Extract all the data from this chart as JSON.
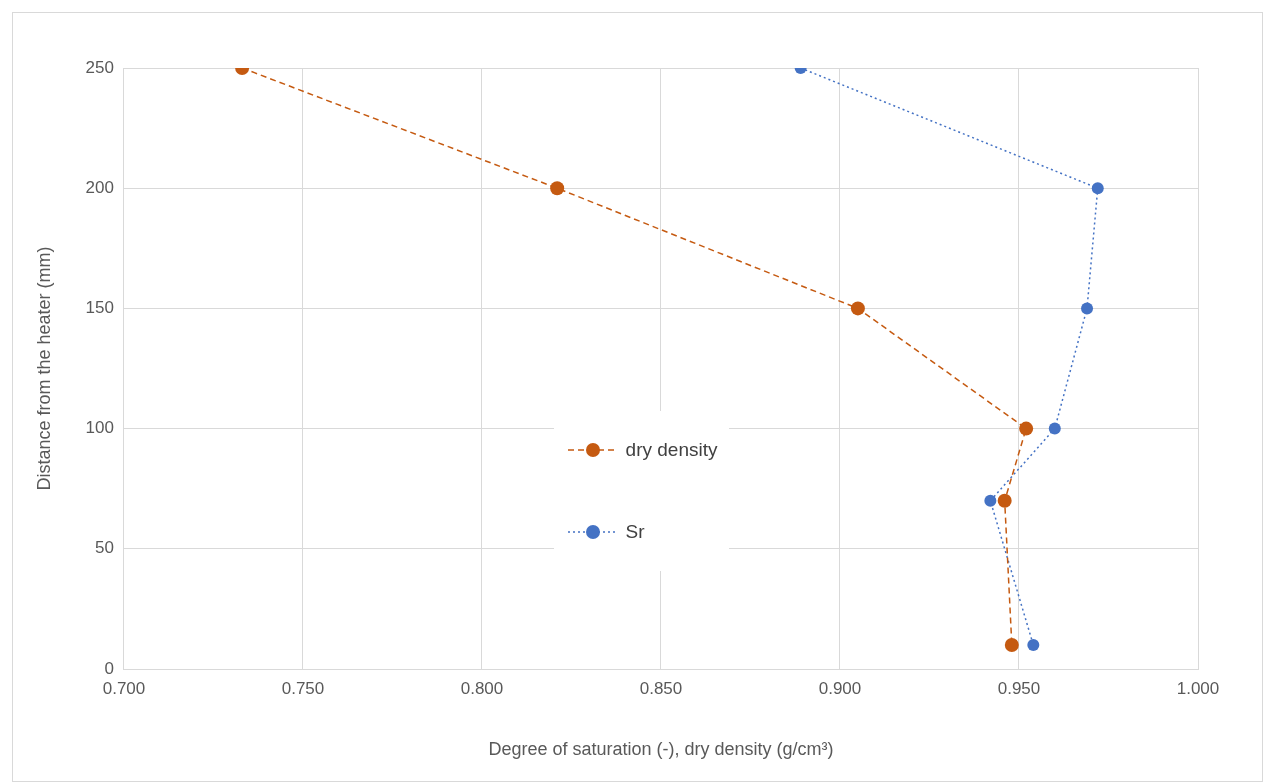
{
  "chart_data": {
    "type": "line",
    "xlabel": "Degree of saturation (-), dry density (g/cm³)",
    "ylabel": "Distance from the heater (mm)",
    "xlim": [
      0.7,
      1.0
    ],
    "xticks": [
      {
        "value": 0.7,
        "label": "0.700"
      },
      {
        "value": 0.75,
        "label": "0.750"
      },
      {
        "value": 0.8,
        "label": "0.800"
      },
      {
        "value": 0.85,
        "label": "0.850"
      },
      {
        "value": 0.9,
        "label": "0.900"
      },
      {
        "value": 0.95,
        "label": "0.950"
      },
      {
        "value": 1.0,
        "label": "1.000"
      }
    ],
    "ylim": [
      0,
      250
    ],
    "yticks": [
      0,
      50,
      100,
      150,
      200,
      250
    ],
    "grid": true,
    "legend": "center",
    "marker": "circle",
    "series": [
      {
        "name": "dry density",
        "color": "#c55a11",
        "line_style": "dashed",
        "x": [
          0.733,
          0.821,
          0.905,
          0.952,
          0.946,
          0.948
        ],
        "values": [
          250,
          200,
          150,
          100,
          70,
          10
        ]
      },
      {
        "name": "Sr",
        "color": "#4472c4",
        "line_style": "dotted",
        "x": [
          0.889,
          0.972,
          0.969,
          0.96,
          0.942,
          0.954
        ],
        "values": [
          250,
          200,
          150,
          100,
          70,
          10
        ]
      }
    ]
  }
}
